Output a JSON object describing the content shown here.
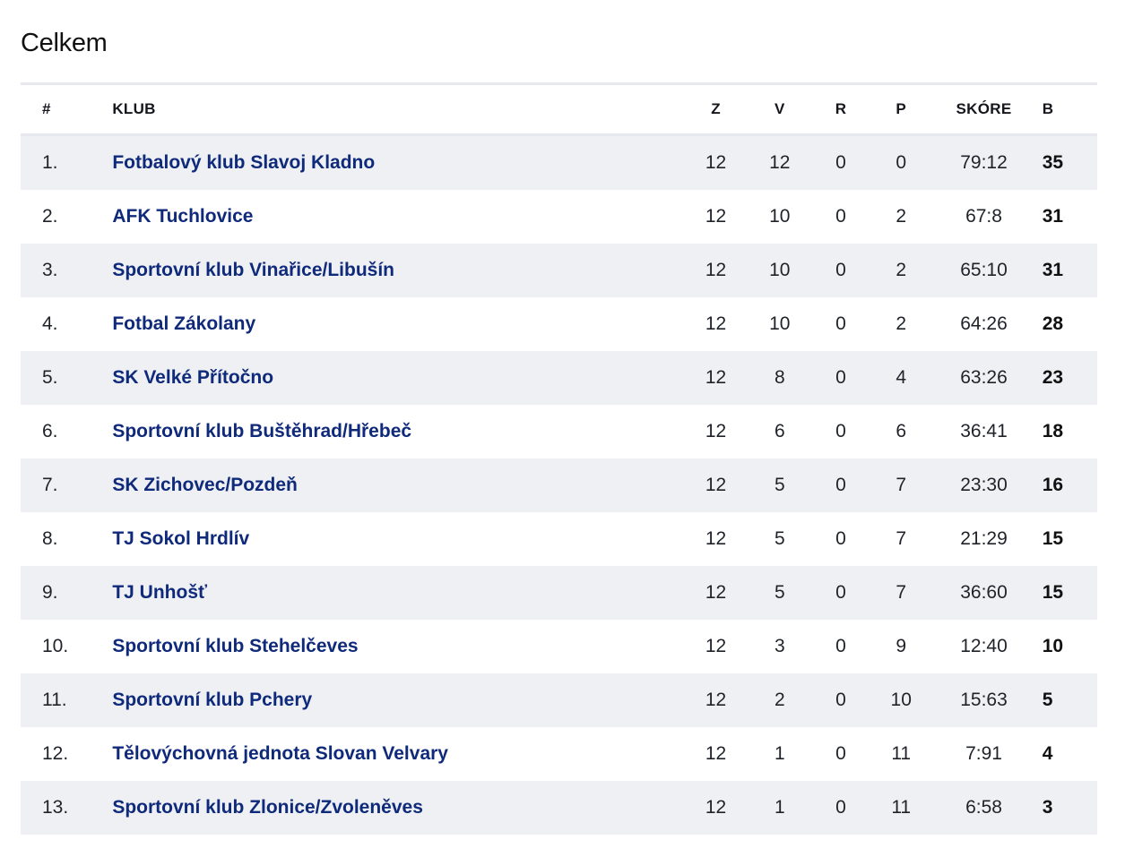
{
  "section": {
    "title": "Celkem"
  },
  "table": {
    "headers": {
      "rank": "#",
      "club": "KLUB",
      "played": "Z",
      "won": "V",
      "drawn": "R",
      "lost": "P",
      "score": "SKÓRE",
      "points": "B"
    },
    "rows": [
      {
        "rank": "1.",
        "club": "Fotbalový klub Slavoj Kladno",
        "played": "12",
        "won": "12",
        "drawn": "0",
        "lost": "0",
        "score": "79:12",
        "points": "35"
      },
      {
        "rank": "2.",
        "club": "AFK Tuchlovice",
        "played": "12",
        "won": "10",
        "drawn": "0",
        "lost": "2",
        "score": "67:8",
        "points": "31"
      },
      {
        "rank": "3.",
        "club": "Sportovní klub Vinařice/Libušín",
        "played": "12",
        "won": "10",
        "drawn": "0",
        "lost": "2",
        "score": "65:10",
        "points": "31"
      },
      {
        "rank": "4.",
        "club": "Fotbal Zákolany",
        "played": "12",
        "won": "10",
        "drawn": "0",
        "lost": "2",
        "score": "64:26",
        "points": "28"
      },
      {
        "rank": "5.",
        "club": "SK Velké Přítočno",
        "played": "12",
        "won": "8",
        "drawn": "0",
        "lost": "4",
        "score": "63:26",
        "points": "23"
      },
      {
        "rank": "6.",
        "club": "Sportovní klub Buštěhrad/Hřebeč",
        "played": "12",
        "won": "6",
        "drawn": "0",
        "lost": "6",
        "score": "36:41",
        "points": "18"
      },
      {
        "rank": "7.",
        "club": "SK Zichovec/Pozdeň",
        "played": "12",
        "won": "5",
        "drawn": "0",
        "lost": "7",
        "score": "23:30",
        "points": "16"
      },
      {
        "rank": "8.",
        "club": "TJ Sokol Hrdlív",
        "played": "12",
        "won": "5",
        "drawn": "0",
        "lost": "7",
        "score": "21:29",
        "points": "15"
      },
      {
        "rank": "9.",
        "club": "TJ Unhošť",
        "played": "12",
        "won": "5",
        "drawn": "0",
        "lost": "7",
        "score": "36:60",
        "points": "15"
      },
      {
        "rank": "10.",
        "club": "Sportovní klub Stehelčeves",
        "played": "12",
        "won": "3",
        "drawn": "0",
        "lost": "9",
        "score": "12:40",
        "points": "10"
      },
      {
        "rank": "11.",
        "club": "Sportovní klub Pchery",
        "played": "12",
        "won": "2",
        "drawn": "0",
        "lost": "10",
        "score": "15:63",
        "points": "5"
      },
      {
        "rank": "12.",
        "club": "Tělovýchovná jednota Slovan Velvary",
        "played": "12",
        "won": "1",
        "drawn": "0",
        "lost": "11",
        "score": "7:91",
        "points": "4"
      },
      {
        "rank": "13.",
        "club": "Sportovní klub Zlonice/Zvoleněves",
        "played": "12",
        "won": "1",
        "drawn": "0",
        "lost": "11",
        "score": "6:58",
        "points": "3"
      }
    ]
  },
  "colors": {
    "club_link": "#0f2a7a",
    "row_stripe": "#eef0f4",
    "divider": "#e6e8ee"
  }
}
